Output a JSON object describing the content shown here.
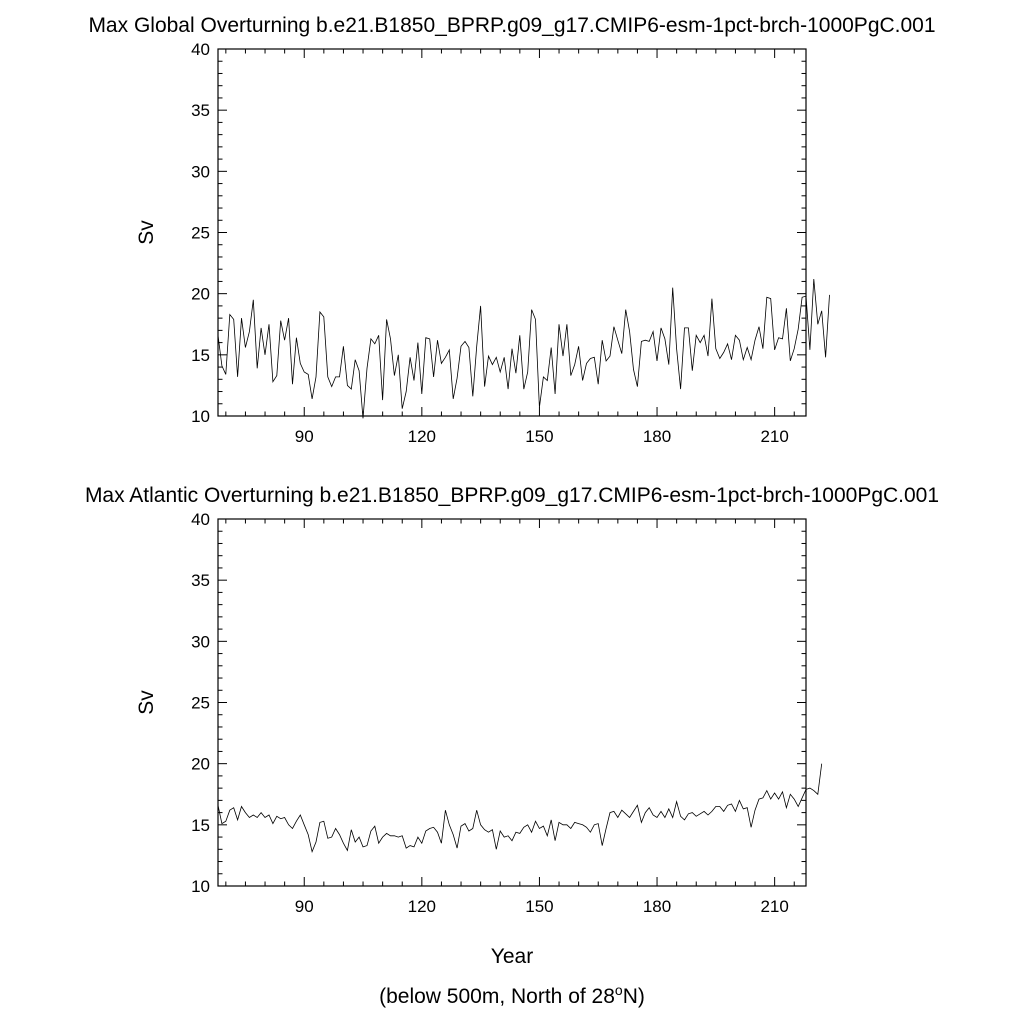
{
  "footnote": {
    "prefix": "(below 500m, North of 28",
    "sup": "o",
    "suffix": "N)"
  },
  "chart_data": [
    {
      "type": "line",
      "title": "Max Global Overturning b.e21.B1850_BPRP.g09_g17.CMIP6-esm-1pct-brch-1000PgC.001",
      "xlabel": "",
      "ylabel": "Sv",
      "xlim": [
        68,
        218
      ],
      "ylim": [
        10,
        40
      ],
      "xticks": [
        90,
        120,
        150,
        180,
        210
      ],
      "yticks": [
        10,
        15,
        20,
        25,
        30,
        35,
        40
      ],
      "grid": false,
      "series": [
        {
          "x0": 68,
          "values": [
            16.6,
            14.1,
            13.4,
            18.3,
            17.9,
            13.2,
            18.0,
            15.6,
            16.9,
            19.5,
            13.9,
            17.2,
            15.0,
            17.5,
            12.8,
            13.3,
            17.8,
            16.2,
            18.0,
            12.6,
            16.4,
            14.3,
            13.6,
            13.4,
            11.4,
            13.2,
            18.5,
            18.1,
            13.2,
            12.4,
            13.2,
            13.2,
            15.7,
            12.5,
            12.2,
            14.6,
            13.7,
            9.8,
            13.9,
            16.3,
            15.9,
            16.6,
            11.3,
            17.9,
            16.3,
            13.3,
            15.0,
            10.6,
            12.0,
            14.8,
            12.9,
            16.0,
            11.8,
            16.4,
            16.3,
            13.2,
            16.2,
            14.3,
            14.8,
            15.4,
            11.4,
            13.1,
            15.7,
            16.1,
            15.6,
            11.6,
            15.7,
            19.0,
            12.4,
            14.9,
            14.2,
            14.8,
            13.6,
            14.8,
            12.2,
            15.5,
            13.5,
            16.6,
            12.2,
            13.6,
            18.7,
            17.9,
            10.7,
            13.2,
            12.9,
            15.6,
            11.8,
            17.5,
            14.9,
            17.5,
            13.3,
            14.2,
            15.7,
            12.9,
            14.3,
            14.7,
            14.8,
            12.6,
            16.2,
            14.5,
            14.9,
            17.3,
            16.2,
            15.1,
            18.7,
            16.9,
            13.8,
            12.4,
            16.1,
            16.2,
            16.1,
            16.9,
            14.5,
            17.2,
            16.3,
            14.2,
            20.5,
            15.5,
            12.2,
            17.2,
            17.2,
            13.7,
            16.6,
            16.0,
            16.6,
            14.9,
            19.6,
            15.5,
            14.7,
            15.2,
            15.9,
            14.6,
            16.6,
            16.2,
            14.6,
            15.6,
            14.6,
            16.2,
            17.3,
            15.5,
            19.7,
            19.6,
            15.4,
            16.4,
            16.3,
            18.8,
            14.5,
            15.5,
            17.1,
            19.7,
            19.8,
            15.4,
            21.2,
            17.5,
            18.6,
            14.8,
            19.9
          ]
        }
      ]
    },
    {
      "type": "line",
      "title": "Max Atlantic Overturning b.e21.B1850_BPRP.g09_g17.CMIP6-esm-1pct-brch-1000PgC.001",
      "xlabel": "Year",
      "ylabel": "Sv",
      "xlim": [
        68,
        218
      ],
      "ylim": [
        10,
        40
      ],
      "xticks": [
        90,
        120,
        150,
        180,
        210
      ],
      "yticks": [
        10,
        15,
        20,
        25,
        30,
        35,
        40
      ],
      "grid": false,
      "series": [
        {
          "x0": 68,
          "values": [
            16.6,
            15.1,
            15.3,
            16.2,
            16.4,
            15.4,
            16.5,
            16.0,
            15.6,
            15.8,
            15.6,
            16.0,
            15.6,
            15.8,
            15.1,
            15.7,
            15.5,
            15.6,
            15.0,
            14.7,
            15.3,
            15.8,
            15.0,
            14.2,
            12.8,
            13.6,
            15.2,
            15.3,
            13.9,
            14.0,
            14.7,
            14.2,
            13.5,
            12.9,
            14.6,
            13.6,
            14.0,
            13.2,
            13.3,
            14.5,
            14.9,
            13.5,
            14.0,
            14.3,
            14.1,
            14.1,
            14.0,
            14.1,
            13.1,
            13.3,
            13.2,
            14.0,
            13.5,
            14.5,
            14.7,
            14.8,
            14.4,
            13.5,
            16.2,
            15.0,
            14.2,
            13.1,
            14.9,
            15.1,
            14.5,
            14.7,
            16.2,
            15.0,
            14.6,
            14.4,
            14.6,
            13.0,
            14.5,
            14.0,
            14.1,
            13.7,
            14.4,
            14.3,
            14.8,
            15.0,
            14.4,
            15.3,
            14.7,
            14.9,
            14.1,
            15.4,
            13.7,
            15.2,
            15.0,
            15.0,
            14.7,
            15.2,
            15.1,
            15.0,
            14.8,
            14.4,
            15.0,
            15.1,
            13.3,
            14.7,
            16.0,
            16.1,
            15.6,
            16.2,
            15.9,
            15.6,
            16.1,
            16.6,
            15.2,
            16.0,
            16.4,
            15.8,
            15.6,
            16.1,
            15.6,
            16.3,
            15.6,
            16.9,
            15.7,
            15.4,
            15.9,
            16.0,
            15.7,
            15.9,
            16.1,
            15.8,
            16.1,
            16.5,
            16.5,
            16.1,
            16.6,
            16.7,
            16.1,
            17.0,
            16.3,
            16.4,
            14.8,
            16.2,
            17.1,
            17.2,
            17.8,
            17.1,
            17.6,
            17.1,
            17.7,
            16.4,
            17.5,
            17.1,
            16.5,
            17.2,
            17.9,
            18.0,
            17.8,
            17.5,
            20.0
          ]
        }
      ]
    }
  ]
}
